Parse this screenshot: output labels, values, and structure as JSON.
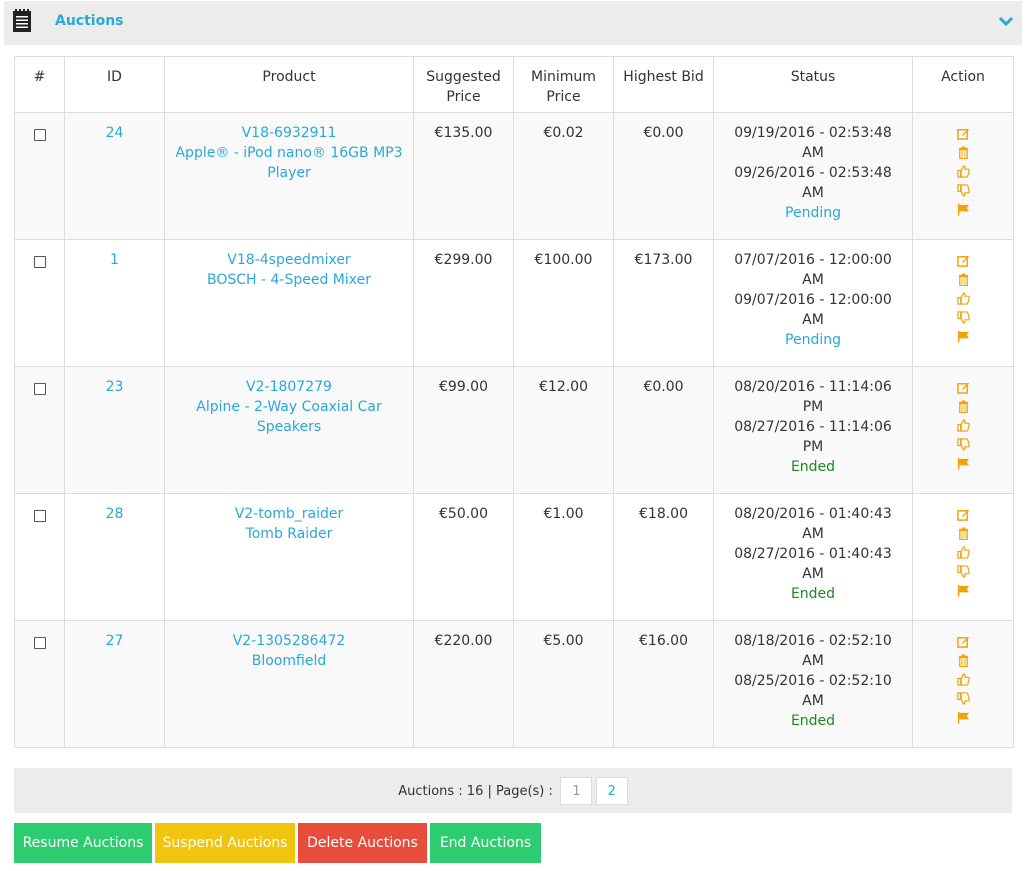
{
  "header": {
    "title": "Auctions",
    "icon": "notepad-icon"
  },
  "columns": {
    "hash": "#",
    "id": "ID",
    "product": "Product",
    "suggested_1": "Suggested",
    "suggested_2": "Price",
    "minimum_1": "Minimum",
    "minimum_2": "Price",
    "highest": "Highest Bid",
    "status": "Status",
    "action": "Action"
  },
  "rows": [
    {
      "id": "24",
      "sku": "V18-6932911",
      "name": "Apple® - iPod nano® 16GB MP3 Player",
      "suggested": "€135.00",
      "minimum": "€0.02",
      "highest": "€0.00",
      "start": "09/19/2016 - 02:53:48 AM",
      "end": "09/26/2016 - 02:53:48 AM",
      "status": "Pending"
    },
    {
      "id": "1",
      "sku": "V18-4speedmixer",
      "name": "BOSCH - 4-Speed Mixer",
      "suggested": "€299.00",
      "minimum": "€100.00",
      "highest": "€173.00",
      "start": "07/07/2016 - 12:00:00 AM",
      "end": "09/07/2016 - 12:00:00 AM",
      "status": "Pending"
    },
    {
      "id": "23",
      "sku": "V2-1807279",
      "name": "Alpine - 2-Way Coaxial Car Speakers",
      "suggested": "€99.00",
      "minimum": "€12.00",
      "highest": "€0.00",
      "start": "08/20/2016 - 11:14:06 PM",
      "end": "08/27/2016 - 11:14:06 PM",
      "status": "Ended"
    },
    {
      "id": "28",
      "sku": "V2-tomb_raider",
      "name": "Tomb Raider",
      "suggested": "€50.00",
      "minimum": "€1.00",
      "highest": "€18.00",
      "start": "08/20/2016 - 01:40:43 AM",
      "end": "08/27/2016 - 01:40:43 AM",
      "status": "Ended"
    },
    {
      "id": "27",
      "sku": "V2-1305286472",
      "name": "Bloomfield",
      "suggested": "€220.00",
      "minimum": "€5.00",
      "highest": "€16.00",
      "start": "08/18/2016 - 02:52:10 AM",
      "end": "08/25/2016 - 02:52:10 AM",
      "status": "Ended"
    }
  ],
  "pager": {
    "label": "Auctions : 16 | Page(s) :",
    "pages": [
      "1",
      "2"
    ],
    "current": "1"
  },
  "buttons": {
    "resume": "Resume Auctions",
    "suspend": "Suspend Auctions",
    "delete": "Delete Auctions",
    "end": "End Auctions"
  },
  "colors": {
    "accent": "#2aa8d8",
    "icon": "#f0a30a",
    "green": "#2ecc71",
    "yellow": "#f1c40f",
    "red": "#e74c3c",
    "ended": "#1d8a1d"
  }
}
